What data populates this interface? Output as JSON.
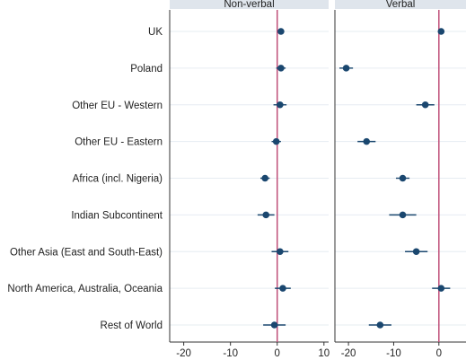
{
  "chart_data": {
    "type": "scatter",
    "subtype": "coefficient-plot",
    "categories": [
      "UK",
      "Poland",
      "Other EU - Western",
      "Other EU - Eastern",
      "Africa (incl. Nigeria)",
      "Indian Subcontinent",
      "Other Asia (East and South-East)",
      "North America, Australia, Oceania",
      "Rest of World"
    ],
    "reference_line": 0,
    "grid": true,
    "colors": {
      "point": "#1a476f",
      "reference": "#c0507a",
      "header_bg": "#dfe5ec",
      "grid": "#e6ecf2",
      "axis": "#333333"
    },
    "panels": [
      {
        "title": "Non-verbal",
        "xlim": [
          -23,
          11
        ],
        "xticks": [
          -20,
          -10,
          0,
          10
        ],
        "points": [
          {
            "estimate": 0.8,
            "low": 0.1,
            "high": 1.5
          },
          {
            "estimate": 0.8,
            "low": -0.2,
            "high": 1.8
          },
          {
            "estimate": 0.6,
            "low": -0.8,
            "high": 2.0
          },
          {
            "estimate": -0.2,
            "low": -1.2,
            "high": 0.8
          },
          {
            "estimate": -2.6,
            "low": -3.6,
            "high": -1.6
          },
          {
            "estimate": -2.4,
            "low": -4.2,
            "high": -0.6
          },
          {
            "estimate": 0.6,
            "low": -1.2,
            "high": 2.4
          },
          {
            "estimate": 1.2,
            "low": -0.5,
            "high": 2.9
          },
          {
            "estimate": -0.6,
            "low": -3.0,
            "high": 1.8
          }
        ]
      },
      {
        "title": "Verbal",
        "xlim": [
          -23,
          6
        ],
        "xticks": [
          -20,
          -10,
          0
        ],
        "points": [
          {
            "estimate": 0.5,
            "low": -0.2,
            "high": 1.2
          },
          {
            "estimate": -20.5,
            "low": -22.0,
            "high": -19.0
          },
          {
            "estimate": -3.0,
            "low": -5.0,
            "high": -1.0
          },
          {
            "estimate": -16.0,
            "low": -18.0,
            "high": -14.0
          },
          {
            "estimate": -8.0,
            "low": -9.5,
            "high": -6.5
          },
          {
            "estimate": -8.0,
            "low": -11.0,
            "high": -5.0
          },
          {
            "estimate": -5.0,
            "low": -7.5,
            "high": -2.5
          },
          {
            "estimate": 0.5,
            "low": -1.5,
            "high": 2.5
          },
          {
            "estimate": -13.0,
            "low": -15.5,
            "high": -10.5
          }
        ]
      }
    ]
  }
}
